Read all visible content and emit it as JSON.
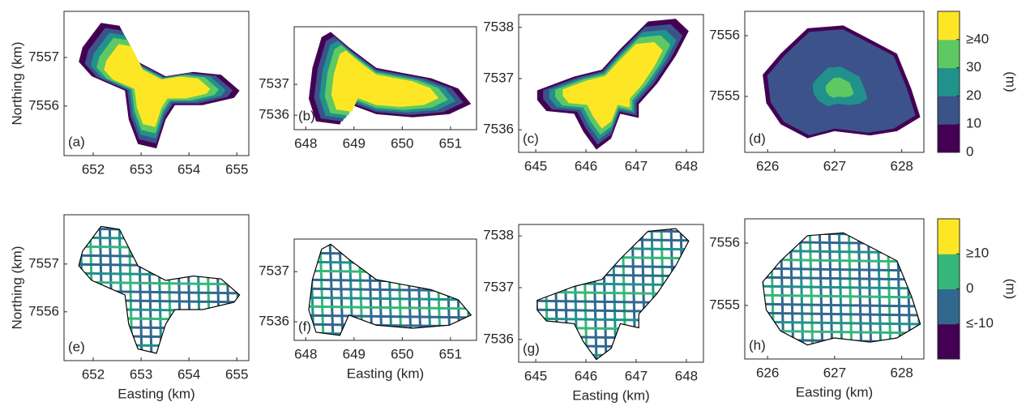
{
  "panels": [
    {
      "label": "(a)",
      "xlim": [
        651.39,
        655.25
      ],
      "ylim": [
        7554.98,
        7557.95
      ],
      "xticks": [
        652,
        653,
        654,
        655
      ],
      "yticks": [
        7556,
        7557
      ],
      "ylabel": "Northing (km)"
    },
    {
      "label": "(b)",
      "xlim": [
        647.76,
        651.54
      ],
      "ylim": [
        7535.53,
        7538.87
      ],
      "xticks": [
        648,
        649,
        650,
        651
      ],
      "yticks": [
        7536,
        7537
      ]
    },
    {
      "label": "(c)",
      "xlim": [
        644.66,
        648.34
      ],
      "ylim": [
        7535.56,
        7538.25
      ],
      "xticks": [
        645,
        646,
        647,
        648
      ],
      "yticks": [
        7536,
        7537,
        7538
      ]
    },
    {
      "label": "(d)",
      "xlim": [
        625.66,
        628.33
      ],
      "ylim": [
        7554.08,
        7556.4
      ],
      "xticks": [
        626,
        627,
        628
      ],
      "yticks": [
        7555,
        7556
      ]
    },
    {
      "label": "(e)",
      "xlim": [
        651.39,
        655.25
      ],
      "ylim": [
        7554.98,
        7558.03
      ],
      "xticks": [
        652,
        653,
        654,
        655
      ],
      "yticks": [
        7556,
        7557
      ],
      "ylabel": "Northing (km)",
      "xlabel": "Easting (km)"
    },
    {
      "label": "(f)",
      "xlim": [
        647.76,
        651.54
      ],
      "ylim": [
        7535.63,
        7537.65
      ],
      "xticks": [
        648,
        649,
        650,
        651
      ],
      "yticks": [
        7536,
        7537
      ],
      "xlabel": "Easting (km)"
    },
    {
      "label": "(g)",
      "xlim": [
        644.66,
        648.34
      ],
      "ylim": [
        7535.56,
        7538.22
      ],
      "xticks": [
        645,
        646,
        647,
        648
      ],
      "yticks": [
        7536,
        7537,
        7538
      ],
      "xlabel": "Easting (km)"
    },
    {
      "label": "(h)",
      "xlim": [
        625.66,
        628.33
      ],
      "ylim": [
        7554.14,
        7556.39
      ],
      "xticks": [
        626,
        627,
        628
      ],
      "yticks": [
        7555,
        7556
      ],
      "xlabel": "Easting (km)"
    }
  ],
  "colorbars": [
    {
      "lim": [
        0,
        50
      ],
      "ticks": [
        0,
        10,
        20,
        30,
        {
          "value": 40,
          "label": "≥40"
        }
      ],
      "colors": [
        "#440154",
        "#3b528b",
        "#21918c",
        "#5ec962",
        "#fde725"
      ],
      "label": "(m)"
    },
    {
      "lim": [
        -20,
        20
      ],
      "ticks": [
        {
          "value": -10,
          "label": "≤-10"
        },
        0,
        {
          "value": 10,
          "label": "≥10"
        }
      ],
      "colors": [
        "#440154",
        "#31688e",
        "#35b779",
        "#fde725"
      ],
      "label": "(m)"
    }
  ]
}
